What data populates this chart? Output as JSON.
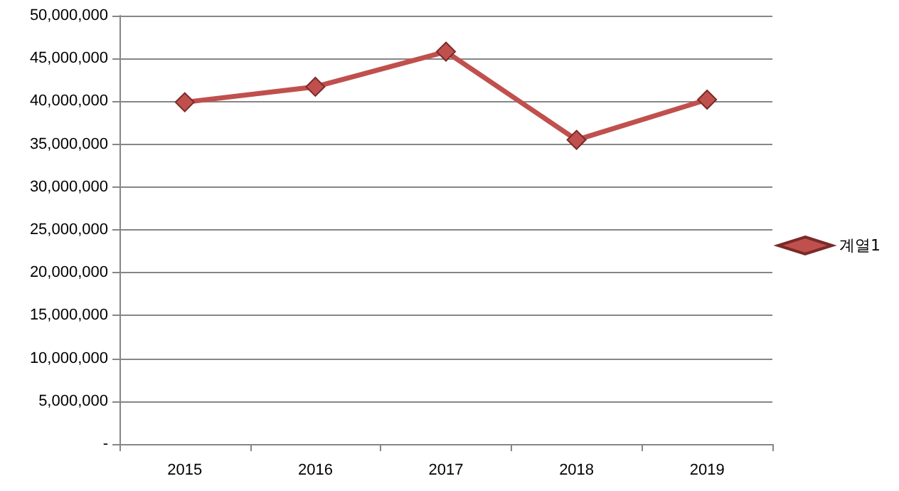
{
  "chart_data": {
    "type": "line",
    "categories": [
      "2015",
      "2016",
      "2017",
      "2018",
      "2019"
    ],
    "series": [
      {
        "name": "계열1",
        "color": "#c0504d",
        "values": [
          39900000,
          41700000,
          45800000,
          35500000,
          40200000
        ]
      }
    ],
    "ylim": [
      0,
      50000000
    ],
    "yticks": [
      {
        "value": 0,
        "label": "-"
      },
      {
        "value": 5000000,
        "label": "5,000,000"
      },
      {
        "value": 10000000,
        "label": "10,000,000"
      },
      {
        "value": 15000000,
        "label": "15,000,000"
      },
      {
        "value": 20000000,
        "label": "20,000,000"
      },
      {
        "value": 25000000,
        "label": "25,000,000"
      },
      {
        "value": 30000000,
        "label": "30,000,000"
      },
      {
        "value": 35000000,
        "label": "35,000,000"
      },
      {
        "value": 40000000,
        "label": "40,000,000"
      },
      {
        "value": 45000000,
        "label": "45,000,000"
      },
      {
        "value": 50000000,
        "label": "50,000,000"
      }
    ],
    "grid": "y",
    "legend": "right",
    "marker": "diamond",
    "line_style": "solid"
  }
}
